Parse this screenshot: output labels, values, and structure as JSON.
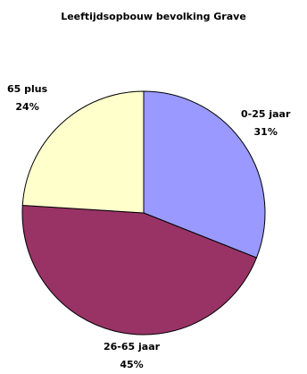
{
  "chart_data": {
    "type": "pie",
    "title": "Leeftijdsopbouw bevolking Grave",
    "slices": [
      {
        "label": "0-25 jaar",
        "value": 31,
        "value_label": "31%",
        "color": "#9999ff"
      },
      {
        "label": "26-65 jaar",
        "value": 45,
        "value_label": "45%",
        "color": "#993366"
      },
      {
        "label": "65 plus",
        "value": 24,
        "value_label": "24%",
        "color": "#ffffcc"
      }
    ],
    "start_angle_deg": 0,
    "direction": "clockwise",
    "legend": "none"
  }
}
